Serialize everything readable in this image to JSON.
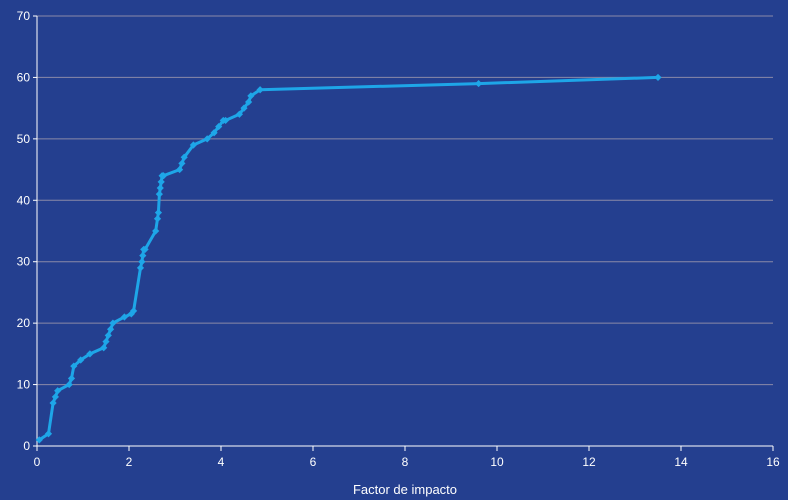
{
  "colors": {
    "background": "#243f8f",
    "plot_background": "#243f8f",
    "gridline": "#8a8aa8",
    "axis": "#ffffff",
    "series": "#1ea6e8",
    "text": "#ffffff"
  },
  "chart_data": {
    "type": "line",
    "title": "",
    "xlabel": "Factor de impacto",
    "ylabel": "",
    "xlim": [
      0,
      16
    ],
    "ylim": [
      0,
      70
    ],
    "x_ticks": [
      "0",
      "2",
      "4",
      "6",
      "8",
      "10",
      "12",
      "14",
      "16"
    ],
    "y_ticks": [
      "0",
      "10",
      "20",
      "30",
      "40",
      "50",
      "60",
      "70"
    ],
    "grid": "horizontal",
    "legend": "none",
    "markers": "diamond",
    "series": [
      {
        "x": [
          0.05,
          0.25,
          0.35,
          0.4,
          0.45,
          0.7,
          0.75,
          0.8,
          0.95,
          1.15,
          1.45,
          1.5,
          1.55,
          1.6,
          1.65,
          1.9,
          2.05,
          2.1,
          2.25,
          2.28,
          2.3,
          2.32,
          2.35,
          2.58,
          2.62,
          2.64,
          2.66,
          2.68,
          2.7,
          2.72,
          2.75,
          3.1,
          3.15,
          3.2,
          3.4,
          3.7,
          3.85,
          3.95,
          4.05,
          4.1,
          4.4,
          4.5,
          4.6,
          4.65,
          4.85,
          9.6,
          13.5
        ],
        "y": [
          1,
          2,
          7,
          8,
          9,
          10,
          11,
          13,
          14,
          15,
          16,
          17,
          18,
          19,
          20,
          21,
          21.5,
          22,
          29,
          30,
          31,
          32,
          32,
          35,
          37,
          38,
          41,
          42,
          43,
          44,
          44,
          45,
          46,
          47,
          49,
          50,
          51,
          52,
          53,
          53,
          54,
          55,
          56,
          57,
          58,
          59,
          60
        ]
      }
    ]
  }
}
